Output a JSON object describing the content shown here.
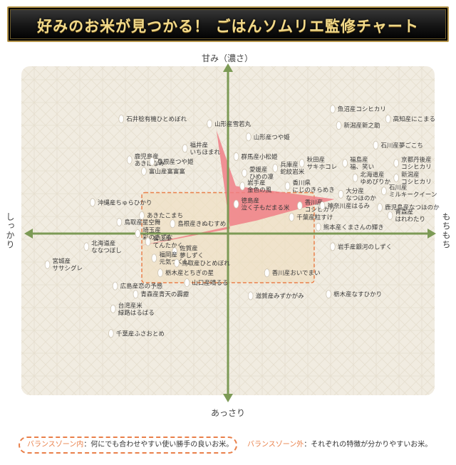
{
  "header": {
    "title": "好みのお米が見つかる！ ごはんソムリエ監修チャート"
  },
  "axes": {
    "top": "甘み（濃さ）",
    "bottom": "あっさり",
    "left": "しっかり",
    "right": "もちもち"
  },
  "legend": {
    "inside_key": "バランスゾーン内",
    "inside_desc": "：何にでも合わせやすい使い勝手の良いお米。",
    "outside_key": "バランスゾーン外",
    "outside_desc": "：それぞれの特徴が分かりやすいお米。"
  },
  "colors": {
    "banner_text": "#f1d98a",
    "background": "#f1ece1",
    "axis": "#7c9a55",
    "highlight": "#f07f86",
    "zone_border": "#e9804a",
    "zone_fill": "#f0dec0",
    "grain": "#ffffff"
  },
  "chart_data": {
    "type": "scatter",
    "title": "",
    "xlabel": "しっかり ↔ もちもち",
    "ylabel": "あっさり ↔ 甘み（濃さ）",
    "xlim": [
      -100,
      100
    ],
    "ylim": [
      -100,
      100
    ],
    "balance_zone": {
      "x": [
        -42,
        42
      ],
      "y": [
        -30,
        25
      ]
    },
    "highlight_star": [
      [
        -5.6,
        63
      ],
      [
        3.8,
        29
      ],
      [
        52,
        21
      ],
      [
        14,
        8
      ],
      [
        -45,
        -8
      ],
      [
        1,
        3
      ]
    ],
    "points": [
      {
        "name": "魚沼産コシヒカリ",
        "x": 51,
        "y": 76
      },
      {
        "name": "石井稔有機ひとめぼれ",
        "x": -52,
        "y": 70
      },
      {
        "name": "高知産にこまる",
        "x": 78,
        "y": 70
      },
      {
        "name": "山形産雪若丸",
        "x": -9,
        "y": 67
      },
      {
        "name": "新潟産新之助",
        "x": 54,
        "y": 66
      },
      {
        "name": "山形産つや姫",
        "x": 10,
        "y": 59
      },
      {
        "name": "石川産夢ごこち",
        "x": 72,
        "y": 54
      },
      {
        "name": "福井産 いちほまれ",
        "x": -21,
        "y": 52
      },
      {
        "name": "群馬産小松姫",
        "x": 4,
        "y": 47
      },
      {
        "name": "鹿児島産 あきほなみ",
        "x": -48,
        "y": 45
      },
      {
        "name": "島根産つや姫",
        "x": -37,
        "y": 44
      },
      {
        "name": "秋田産 サキホコレ",
        "x": 36,
        "y": 43
      },
      {
        "name": "福島産 福、笑い",
        "x": 57,
        "y": 43
      },
      {
        "name": "京都丹後産 コシヒカリ",
        "x": 82,
        "y": 43
      },
      {
        "name": "兵庫産 蛇紋岩米",
        "x": 23,
        "y": 40
      },
      {
        "name": "富山産富富富",
        "x": -41,
        "y": 38
      },
      {
        "name": "愛媛産 ひめの凜",
        "x": 8,
        "y": 37
      },
      {
        "name": "北海道産 ゆめぴりか",
        "x": 62,
        "y": 34
      },
      {
        "name": "新潟産 コシヒカリ",
        "x": 82,
        "y": 34
      },
      {
        "name": "岩手産 金色の風",
        "x": 7,
        "y": 29
      },
      {
        "name": "香川県 にじのきらめき",
        "x": 29,
        "y": 29
      },
      {
        "name": "石川産 ミルキークイーン",
        "x": 76,
        "y": 26
      },
      {
        "name": "大分産 なつほのか",
        "x": 55,
        "y": 24
      },
      {
        "name": "沖縄産ちゅらひかり",
        "x": -66,
        "y": 19
      },
      {
        "name": "徳島産 泣く子もだまる米",
        "x": 4,
        "y": 18
      },
      {
        "name": "香川産 コシヒカリ",
        "x": 35,
        "y": 17
      },
      {
        "name": "神奈川産はるみ",
        "x": 46,
        "y": 17
      },
      {
        "name": "鹿児島産なつほのか",
        "x": 74,
        "y": 16
      },
      {
        "name": "あきたこまち",
        "x": -42,
        "y": 11
      },
      {
        "name": "千葉産粒すけ",
        "x": 31,
        "y": 10
      },
      {
        "name": "青森産 はれわたり",
        "x": 79,
        "y": 11
      },
      {
        "name": "鳥取産星空舞",
        "x": -53,
        "y": 7
      },
      {
        "name": "島根産きぬむすめ",
        "x": -27,
        "y": 6
      },
      {
        "name": "熊本産くまさんの輝き",
        "x": 44,
        "y": 4
      },
      {
        "name": "埼玉産 彩のきずな",
        "x": -44,
        "y": 0
      },
      {
        "name": "富山産 てんたかく",
        "x": -39,
        "y": -5
      },
      {
        "name": "北海道産 ななつぼし",
        "x": -69,
        "y": -8
      },
      {
        "name": "佐賀産 夢しずく",
        "x": -26,
        "y": -11
      },
      {
        "name": "岩手産銀河のしずく",
        "x": 51,
        "y": -8
      },
      {
        "name": "福岡産 元気つくし",
        "x": -36,
        "y": -15
      },
      {
        "name": "鳥取産ひとめぼれ",
        "x": -25,
        "y": -18
      },
      {
        "name": "宮城産 ササシグレ",
        "x": -88,
        "y": -19
      },
      {
        "name": "栃木産とちぎの星",
        "x": -33,
        "y": -24
      },
      {
        "name": "香川産おいでまい",
        "x": 19,
        "y": -24
      },
      {
        "name": "山口産晴るる",
        "x": -20,
        "y": -30
      },
      {
        "name": "広島産恋の予感",
        "x": -55,
        "y": -32
      },
      {
        "name": "青森産青天の霹靂",
        "x": -45,
        "y": -37
      },
      {
        "name": "滋賀産みずかがみ",
        "x": 11,
        "y": -38
      },
      {
        "name": "栃木産なすひかり",
        "x": 49,
        "y": -37
      },
      {
        "name": "台湾産米 緑路はるばる",
        "x": -56,
        "y": -46
      },
      {
        "name": "千葉産ふさおとめ",
        "x": -57,
        "y": -61
      }
    ]
  }
}
